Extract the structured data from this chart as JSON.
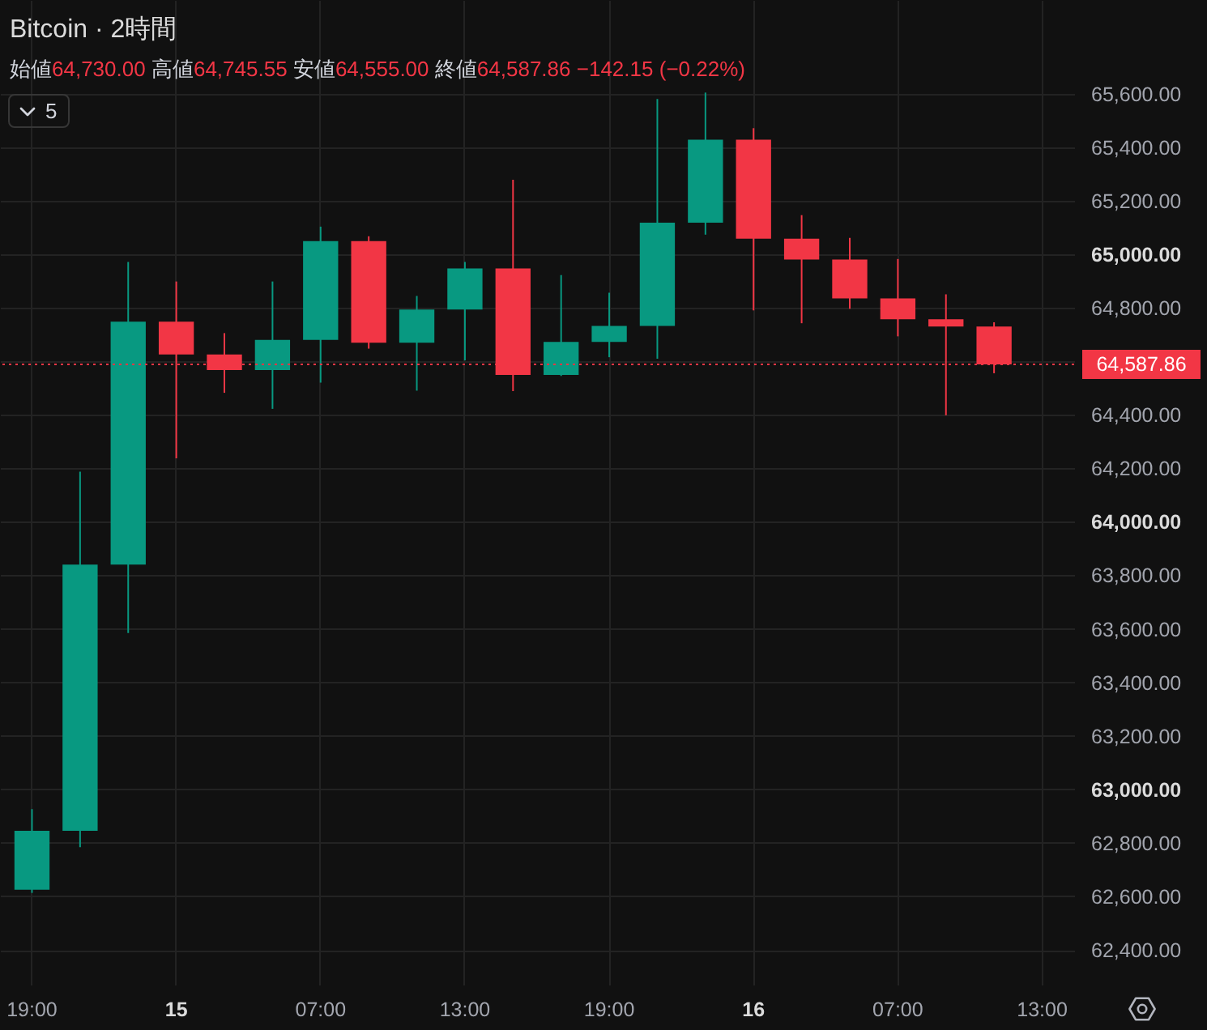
{
  "chart_data": {
    "type": "candlestick",
    "title": "Bitcoin · 2時間",
    "subtitle": "始値64,730.00 高値64,745.55 安値64,555.00 終値64,587.86 −142.15 (−0.22%)",
    "annotations": [
      "5"
    ],
    "categories": [
      "19:00",
      null,
      null,
      "15",
      null,
      null,
      "07:00",
      null,
      null,
      "13:00",
      null,
      null,
      "19:00",
      null,
      null,
      "16",
      null,
      null,
      "07:00",
      null,
      null,
      "13:00"
    ],
    "ohlc": [
      [
        62625,
        62926,
        62613,
        62845
      ],
      [
        62845,
        64187,
        62784,
        63840
      ],
      [
        63840,
        64971,
        63584,
        64748
      ],
      [
        64748,
        64898,
        64237,
        64625
      ],
      [
        64625,
        64705,
        64482,
        64567
      ],
      [
        64567,
        64898,
        64422,
        64680
      ],
      [
        64680,
        65103,
        64520,
        65049
      ],
      [
        65049,
        65067,
        64647,
        64669
      ],
      [
        64669,
        64844,
        64490,
        64793
      ],
      [
        64793,
        64971,
        64603,
        64947
      ],
      [
        64947,
        65278,
        64488,
        64549
      ],
      [
        64549,
        64922,
        64545,
        64672
      ],
      [
        64672,
        64856,
        64615,
        64732
      ],
      [
        64732,
        65580,
        64609,
        65118
      ],
      [
        65118,
        65604,
        65073,
        65428
      ],
      [
        65428,
        65471,
        64790,
        65058
      ],
      [
        65058,
        65146,
        64742,
        64980
      ],
      [
        64980,
        65061,
        64796,
        64835
      ],
      [
        64835,
        64982,
        64693,
        64757
      ],
      [
        64757,
        64850,
        64398,
        64730
      ],
      [
        64730,
        64745.55,
        64555,
        64587.86
      ],
      null
    ],
    "colors": [
      "#089981",
      "#089981",
      "#089981",
      "#f23645",
      "#f23645",
      "#089981",
      "#089981",
      "#f23645",
      "#089981",
      "#089981",
      "#f23645",
      "#089981",
      "#089981",
      "#089981",
      "#089981",
      "#f23645",
      "#f23645",
      "#f23645",
      "#f23645",
      "#f23645",
      "#f23645",
      null
    ],
    "ylim": [
      62270,
      65950
    ],
    "yticks": [
      {
        "value": 62400,
        "label": "62,400.00"
      },
      {
        "value": 62600,
        "label": "62,600.00"
      },
      {
        "value": 62800,
        "label": "62,800.00"
      },
      {
        "value": 63000,
        "label": "63,000.00"
      },
      {
        "value": 63200,
        "label": "63,200.00"
      },
      {
        "value": 63400,
        "label": "63,400.00"
      },
      {
        "value": 63600,
        "label": "63,600.00"
      },
      {
        "value": 63800,
        "label": "63,800.00"
      },
      {
        "value": 64000,
        "label": "64,000.00"
      },
      {
        "value": 64200,
        "label": "64,200.00"
      },
      {
        "value": 64400,
        "label": "64,400.00"
      },
      {
        "value": 64600,
        "label": null
      },
      {
        "value": 64800,
        "label": "64,800.00"
      },
      {
        "value": 65000,
        "label": "65,000.00"
      },
      {
        "value": 65200,
        "label": "65,200.00"
      },
      {
        "value": 65400,
        "label": "65,400.00"
      },
      {
        "value": 65600,
        "label": "65,600.00"
      }
    ],
    "grid": true,
    "ref_lines": [
      {
        "axis": "y",
        "value": 64587.86,
        "label": "64,587.86",
        "color": "#f23645",
        "line_style": "dotted"
      }
    ]
  }
}
